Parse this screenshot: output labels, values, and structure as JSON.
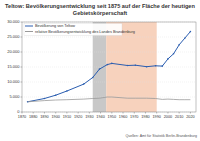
{
  "chart_data": {
    "type": "line",
    "title": "Teltow: Bevölkerungsentwicklung seit 1875 auf der Fläche der heutigen Gebietskörperschaft",
    "x": [
      1875,
      1890,
      1900,
      1910,
      1925,
      1933,
      1939,
      1946,
      1950,
      1964,
      1971,
      1981,
      1989,
      1995,
      2000,
      2005,
      2010,
      2015,
      2020
    ],
    "series": [
      {
        "name": "Bevölkerung von Teltow",
        "color": "#2a5db0",
        "marker": "circle",
        "values": [
          3400,
          4500,
          5600,
          7000,
          9300,
          11500,
          14300,
          15800,
          16200,
          15500,
          15600,
          15100,
          15400,
          15300,
          17700,
          19400,
          22400,
          24600,
          26800
        ]
      },
      {
        "name": "relative Bevölkerungsentwicklung des Landes Brandenburg",
        "color": "#999999",
        "marker": "none",
        "values": [
          3400,
          3800,
          4000,
          4100,
          4300,
          4500,
          4600,
          5000,
          5000,
          4600,
          4600,
          4600,
          4500,
          4200,
          4300,
          4200,
          4100,
          4100,
          4100
        ]
      }
    ],
    "shaded_periods": [
      {
        "start": 1933,
        "end": 1945,
        "color": "#c8c8c8"
      },
      {
        "start": 1945,
        "end": 1990,
        "color": "#f7d2bd"
      }
    ],
    "xlim": [
      1870,
      2025
    ],
    "xticks": [
      1870,
      1880,
      1890,
      1900,
      1910,
      1920,
      1930,
      1940,
      1950,
      1960,
      1970,
      1980,
      1990,
      2000,
      2010,
      2020
    ],
    "ylim": [
      0,
      30000
    ],
    "yticks": [
      0,
      {
        "value": 5000,
        "label": "5.000"
      },
      {
        "value": 10000,
        "label": "10.000"
      },
      {
        "value": 15000,
        "label": "15.000"
      },
      {
        "value": 20000,
        "label": "20.000"
      },
      {
        "value": 25000,
        "label": "25.000"
      },
      {
        "value": 30000,
        "label": "30.000"
      }
    ],
    "grid": true,
    "legend": "upper left",
    "source": "Quellen: Amt für Statistik Berlin-Brandenburg"
  }
}
